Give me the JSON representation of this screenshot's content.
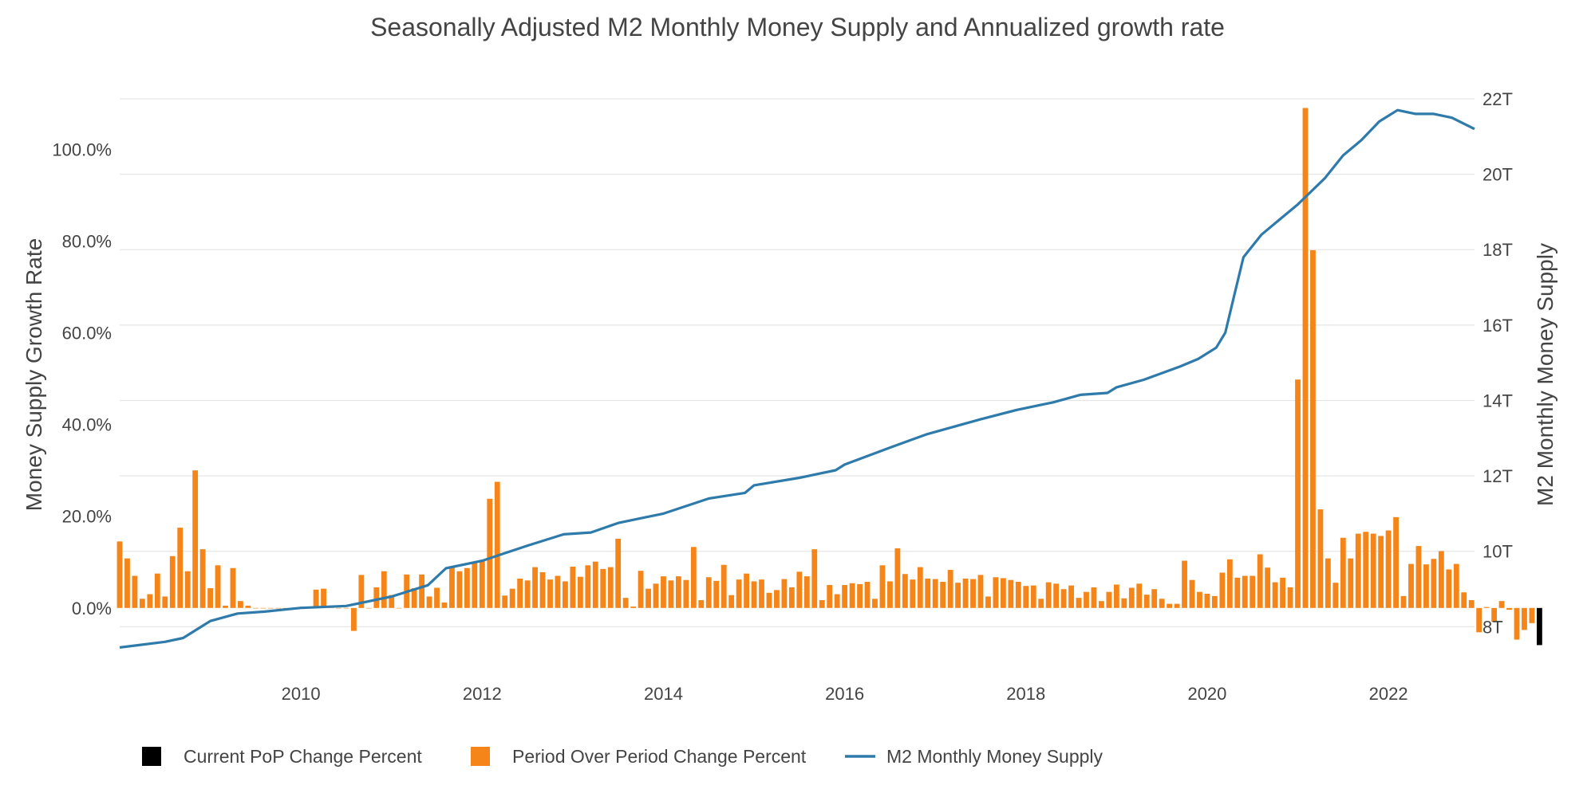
{
  "chart_data": {
    "type": "bar+line",
    "title": "Seasonally Adjusted M2 Monthly Money Supply and Annualized growth rate",
    "y_left_label": "Money Supply Growth Rate",
    "y_right_label": "M2 Monthly Money Supply",
    "y_left_range": [
      -8.2,
      111
    ],
    "y_right_range": [
      7.5,
      22.0
    ],
    "y_left_ticks": [
      {
        "value": 0,
        "label": "0.0%"
      },
      {
        "value": 20,
        "label": "20.0%"
      },
      {
        "value": 40,
        "label": "40.0%"
      },
      {
        "value": 60,
        "label": "60.0%"
      },
      {
        "value": 80,
        "label": "80.0%"
      },
      {
        "value": 100,
        "label": "100.0%"
      }
    ],
    "y_right_ticks": [
      {
        "value": 8,
        "label": "8T"
      },
      {
        "value": 10,
        "label": "10T"
      },
      {
        "value": 12,
        "label": "12T"
      },
      {
        "value": 14,
        "label": "14T"
      },
      {
        "value": 16,
        "label": "16T"
      },
      {
        "value": 18,
        "label": "18T"
      },
      {
        "value": 20,
        "label": "20T"
      },
      {
        "value": 22,
        "label": "22T"
      }
    ],
    "x_range": [
      2008.0,
      2022.95
    ],
    "x_ticks": [
      {
        "value": 2010,
        "label": "2010"
      },
      {
        "value": 2012,
        "label": "2012"
      },
      {
        "value": 2014,
        "label": "2014"
      },
      {
        "value": 2016,
        "label": "2016"
      },
      {
        "value": 2018,
        "label": "2018"
      },
      {
        "value": 2020,
        "label": "2020"
      },
      {
        "value": 2022,
        "label": "2022"
      }
    ],
    "start_year": 2008.0,
    "months_per_year": 12,
    "series": [
      {
        "name": "Period Over Period Change Percent",
        "kind": "bar",
        "color": "#f58518",
        "values": [
          14.5,
          10.8,
          7.0,
          2.0,
          3.0,
          7.5,
          2.5,
          11.3,
          17.5,
          8.0,
          30.0,
          12.8,
          4.3,
          9.3,
          0.5,
          8.7,
          1.5,
          0.5,
          0,
          0,
          0,
          0,
          0,
          0,
          0,
          0,
          4.0,
          4.2,
          0.3,
          0,
          0,
          -5.0,
          7.2,
          0,
          4.5,
          8.0,
          2.8,
          0,
          7.3,
          4.3,
          7.3,
          2.5,
          4.4,
          1.2,
          9.0,
          8.0,
          8.7,
          9.8,
          10.5,
          23.8,
          27.5,
          2.7,
          4.2,
          6.4,
          6.0,
          8.9,
          7.8,
          6.2,
          7.0,
          5.8,
          9.0,
          6.8,
          9.3,
          10.1,
          8.5,
          8.9,
          15.1,
          2.2,
          0.3,
          8.1,
          4.2,
          5.3,
          6.9,
          6.0,
          6.9,
          6.1,
          13.3,
          1.7,
          6.7,
          5.9,
          9.4,
          2.8,
          6.2,
          7.5,
          5.8,
          6.2,
          3.3,
          3.9,
          6.3,
          4.5,
          7.9,
          6.9,
          12.8,
          1.7,
          5.0,
          3.0,
          5.0,
          5.4,
          5.2,
          5.7,
          2.0,
          9.3,
          5.8,
          13.0,
          7.4,
          6.2,
          8.9,
          6.4,
          6.3,
          5.7,
          8.3,
          5.5,
          6.4,
          6.3,
          7.2,
          2.5,
          6.7,
          6.5,
          6.1,
          5.7,
          4.8,
          4.9,
          2.0,
          5.6,
          5.3,
          4.1,
          4.9,
          2.2,
          3.5,
          4.5,
          1.5,
          3.5,
          5.1,
          2.1,
          4.4,
          5.3,
          2.9,
          4.1,
          2.0,
          0.9,
          0.9,
          10.3,
          6.1,
          3.5,
          3.1,
          2.6,
          7.7,
          10.6,
          6.6,
          7.0,
          7.0,
          11.7,
          8.8,
          5.6,
          6.6,
          4.5,
          49.8,
          109.0,
          78.0,
          21.5,
          10.8,
          5.5,
          15.3,
          10.8,
          16.2,
          16.6,
          16.2,
          15.7,
          16.9,
          19.8,
          2.6,
          9.6,
          13.5,
          9.5,
          10.7,
          12.4,
          8.4,
          9.6,
          3.4,
          1.7,
          -5.3,
          0.2,
          -3.0,
          1.5,
          -0.4,
          -6.9,
          -4.8,
          -3.3
        ],
        "current_value": -8.1
      },
      {
        "name": "M2 Monthly Money Supply",
        "kind": "line",
        "color": "#2e7bab",
        "unit": "T",
        "points": [
          [
            2008.0,
            7.45
          ],
          [
            2008.5,
            7.6
          ],
          [
            2008.7,
            7.7
          ],
          [
            2009.0,
            8.15
          ],
          [
            2009.3,
            8.35
          ],
          [
            2009.6,
            8.4
          ],
          [
            2010.0,
            8.5
          ],
          [
            2010.5,
            8.55
          ],
          [
            2011.0,
            8.8
          ],
          [
            2011.4,
            9.1
          ],
          [
            2011.6,
            9.55
          ],
          [
            2012.0,
            9.75
          ],
          [
            2012.5,
            10.15
          ],
          [
            2012.9,
            10.45
          ],
          [
            2013.2,
            10.5
          ],
          [
            2013.5,
            10.75
          ],
          [
            2013.8,
            10.9
          ],
          [
            2014.0,
            11.0
          ],
          [
            2014.5,
            11.4
          ],
          [
            2014.9,
            11.55
          ],
          [
            2015.0,
            11.75
          ],
          [
            2015.5,
            11.95
          ],
          [
            2015.9,
            12.15
          ],
          [
            2016.0,
            12.3
          ],
          [
            2016.5,
            12.75
          ],
          [
            2016.9,
            13.1
          ],
          [
            2017.5,
            13.5
          ],
          [
            2017.9,
            13.75
          ],
          [
            2018.3,
            13.95
          ],
          [
            2018.6,
            14.15
          ],
          [
            2018.9,
            14.2
          ],
          [
            2019.0,
            14.35
          ],
          [
            2019.3,
            14.55
          ],
          [
            2019.7,
            14.9
          ],
          [
            2019.9,
            15.1
          ],
          [
            2020.1,
            15.4
          ],
          [
            2020.2,
            15.8
          ],
          [
            2020.3,
            16.8
          ],
          [
            2020.4,
            17.8
          ],
          [
            2020.6,
            18.4
          ],
          [
            2020.8,
            18.8
          ],
          [
            2021.0,
            19.2
          ],
          [
            2021.3,
            19.9
          ],
          [
            2021.5,
            20.5
          ],
          [
            2021.7,
            20.9
          ],
          [
            2021.9,
            21.4
          ],
          [
            2022.1,
            21.7
          ],
          [
            2022.3,
            21.6
          ],
          [
            2022.5,
            21.6
          ],
          [
            2022.7,
            21.5
          ],
          [
            2022.95,
            21.2
          ]
        ]
      },
      {
        "name": "Current PoP Change Percent",
        "kind": "bar",
        "color": "#000000"
      }
    ],
    "legend": [
      {
        "label": "Current PoP Change Percent",
        "color": "#000000",
        "symbol": "square"
      },
      {
        "label": "Period Over Period Change Percent",
        "color": "#f58518",
        "symbol": "square"
      },
      {
        "label": "M2 Monthly Money Supply",
        "color": "#2e7bab",
        "symbol": "line"
      }
    ],
    "legend_position": "bottom-left",
    "grid": true
  }
}
